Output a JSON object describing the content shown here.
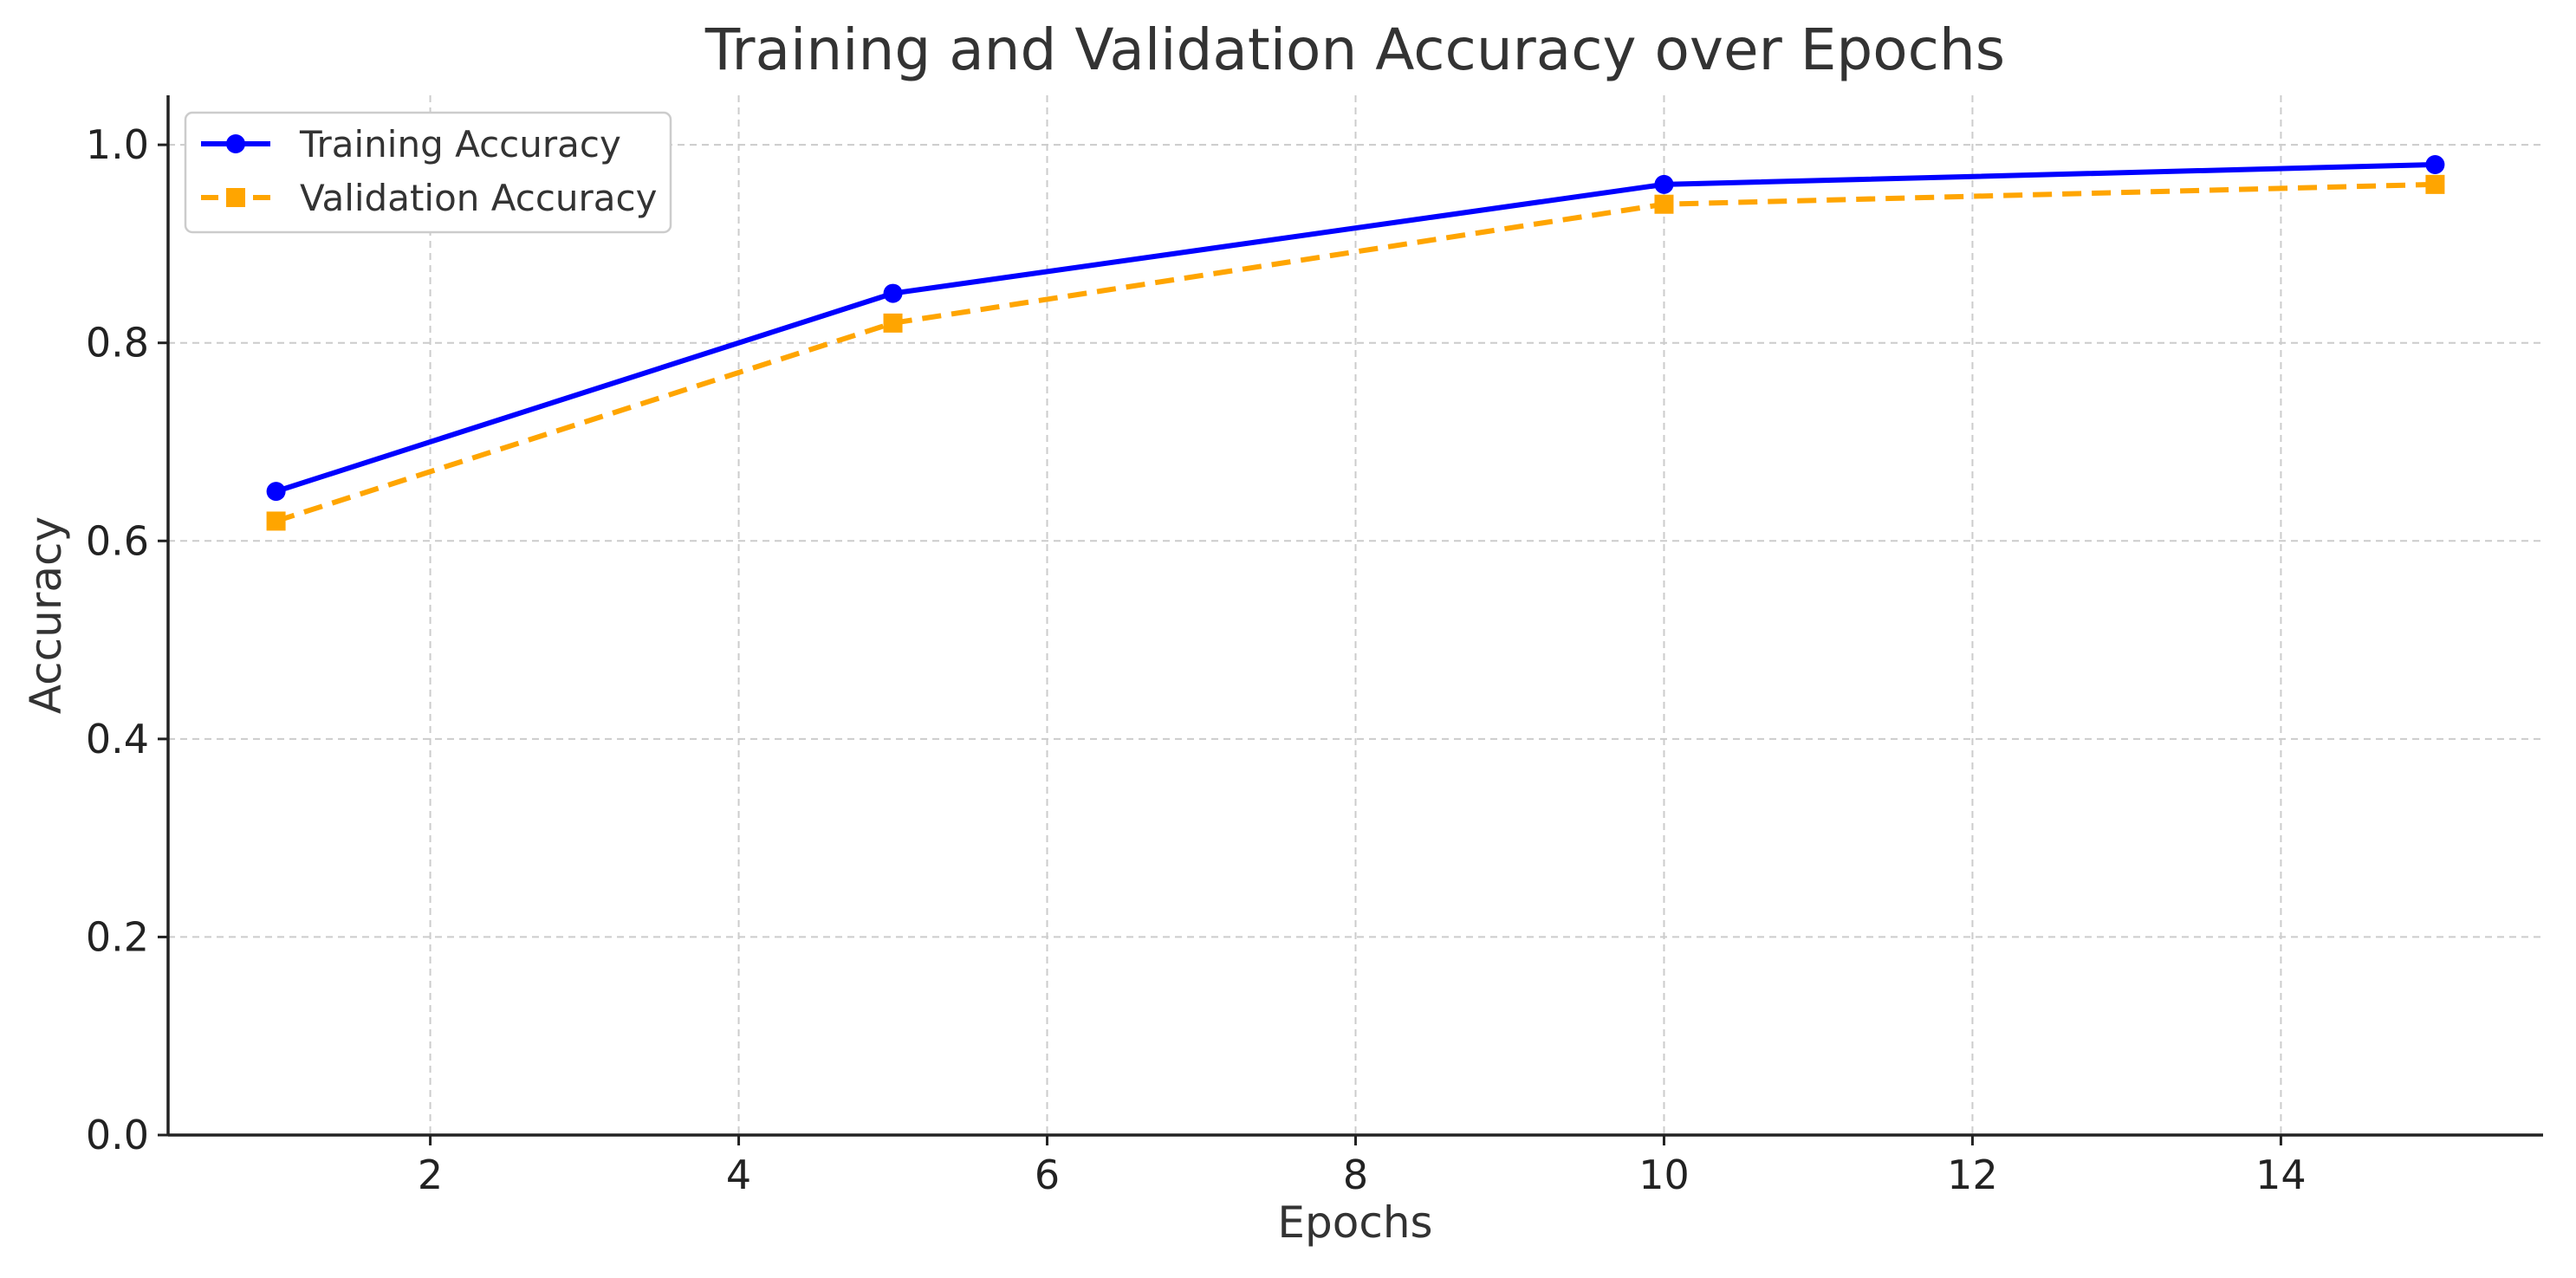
{
  "chart_data": {
    "type": "line",
    "title": "Training and Validation Accuracy over Epochs",
    "xlabel": "Epochs",
    "ylabel": "Accuracy",
    "xlim": [
      0.3,
      15.7
    ],
    "ylim": [
      0.0,
      1.05
    ],
    "xticks": [
      2,
      4,
      6,
      8,
      10,
      12,
      14
    ],
    "yticks": [
      0.0,
      0.2,
      0.4,
      0.6,
      0.8,
      1.0
    ],
    "xtick_labels": [
      "2",
      "4",
      "6",
      "8",
      "10",
      "12",
      "14"
    ],
    "ytick_labels": [
      "0.0",
      "0.2",
      "0.4",
      "0.6",
      "0.8",
      "1.0"
    ],
    "grid": true,
    "legend_position": "top-left",
    "x": [
      1,
      5,
      10,
      15
    ],
    "series": [
      {
        "name": "Training Accuracy",
        "values": [
          0.65,
          0.85,
          0.96,
          0.98
        ],
        "color": "#0000ff",
        "line_style": "solid",
        "marker": "circle"
      },
      {
        "name": "Validation Accuracy",
        "values": [
          0.62,
          0.82,
          0.94,
          0.96
        ],
        "color": "#ffa500",
        "line_style": "dashed",
        "marker": "square"
      }
    ]
  }
}
